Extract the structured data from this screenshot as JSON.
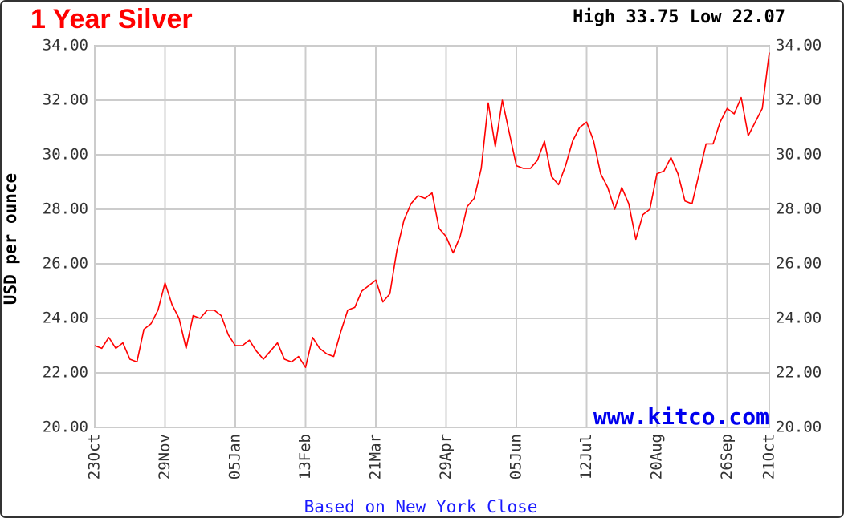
{
  "chart_data": {
    "type": "line",
    "title": "1 Year Silver",
    "subtitle": "High 33.75 Low 22.07",
    "y_label": "USD per ounce",
    "watermark": "www.kitco.com",
    "x_label": "Based on New York Close",
    "categories": [
      "23Oct",
      null,
      null,
      null,
      null,
      null,
      null,
      null,
      null,
      null,
      "29Nov",
      null,
      null,
      null,
      null,
      null,
      null,
      null,
      null,
      null,
      "05Jan",
      null,
      null,
      null,
      null,
      null,
      null,
      null,
      null,
      null,
      "13Feb",
      null,
      null,
      null,
      null,
      null,
      null,
      null,
      null,
      null,
      "21Mar",
      null,
      null,
      null,
      null,
      null,
      null,
      null,
      null,
      null,
      "29Apr",
      null,
      null,
      null,
      null,
      null,
      null,
      null,
      null,
      null,
      "05Jun",
      null,
      null,
      null,
      null,
      null,
      null,
      null,
      null,
      null,
      "12Jul",
      null,
      null,
      null,
      null,
      null,
      null,
      null,
      null,
      null,
      "20Aug",
      null,
      null,
      null,
      null,
      null,
      null,
      null,
      null,
      null,
      "26Sep",
      null,
      null,
      null,
      null,
      null,
      "21Oct"
    ],
    "series": [
      {
        "name": "Silver",
        "color": "#ff0000",
        "values": [
          23.0,
          22.9,
          23.3,
          22.9,
          23.1,
          22.5,
          22.4,
          23.6,
          23.8,
          24.3,
          25.3,
          24.5,
          24.0,
          22.9,
          24.1,
          24.0,
          24.3,
          24.3,
          24.1,
          23.4,
          23.0,
          23.0,
          23.2,
          22.8,
          22.5,
          22.8,
          23.1,
          22.5,
          22.4,
          22.6,
          22.2,
          23.3,
          22.9,
          22.7,
          22.6,
          23.5,
          24.3,
          24.4,
          25.0,
          25.2,
          25.4,
          24.6,
          24.9,
          26.5,
          27.6,
          28.2,
          28.5,
          28.4,
          28.6,
          27.3,
          27.0,
          26.4,
          27.0,
          28.1,
          28.4,
          29.5,
          31.9,
          30.3,
          32.0,
          30.8,
          29.6,
          29.5,
          29.5,
          29.8,
          30.5,
          29.2,
          28.9,
          29.6,
          30.5,
          31.0,
          31.2,
          30.5,
          29.3,
          28.8,
          28.0,
          28.8,
          28.2,
          26.9,
          27.8,
          28.0,
          29.3,
          29.4,
          29.9,
          29.3,
          28.3,
          28.2,
          29.3,
          30.4,
          30.4,
          31.2,
          31.7,
          31.5,
          32.1,
          30.7,
          31.2,
          31.7,
          33.75
        ]
      }
    ],
    "ylim": [
      20,
      34
    ],
    "yticks": [
      {
        "value": 20,
        "label": "20.00"
      },
      {
        "value": 22,
        "label": "22.00"
      },
      {
        "value": 24,
        "label": "24.00"
      },
      {
        "value": 26,
        "label": "26.00"
      },
      {
        "value": 28,
        "label": "28.00"
      },
      {
        "value": 30,
        "label": "30.00"
      },
      {
        "value": 32,
        "label": "32.00"
      },
      {
        "value": 34,
        "label": "34.00"
      }
    ],
    "grid": true
  }
}
